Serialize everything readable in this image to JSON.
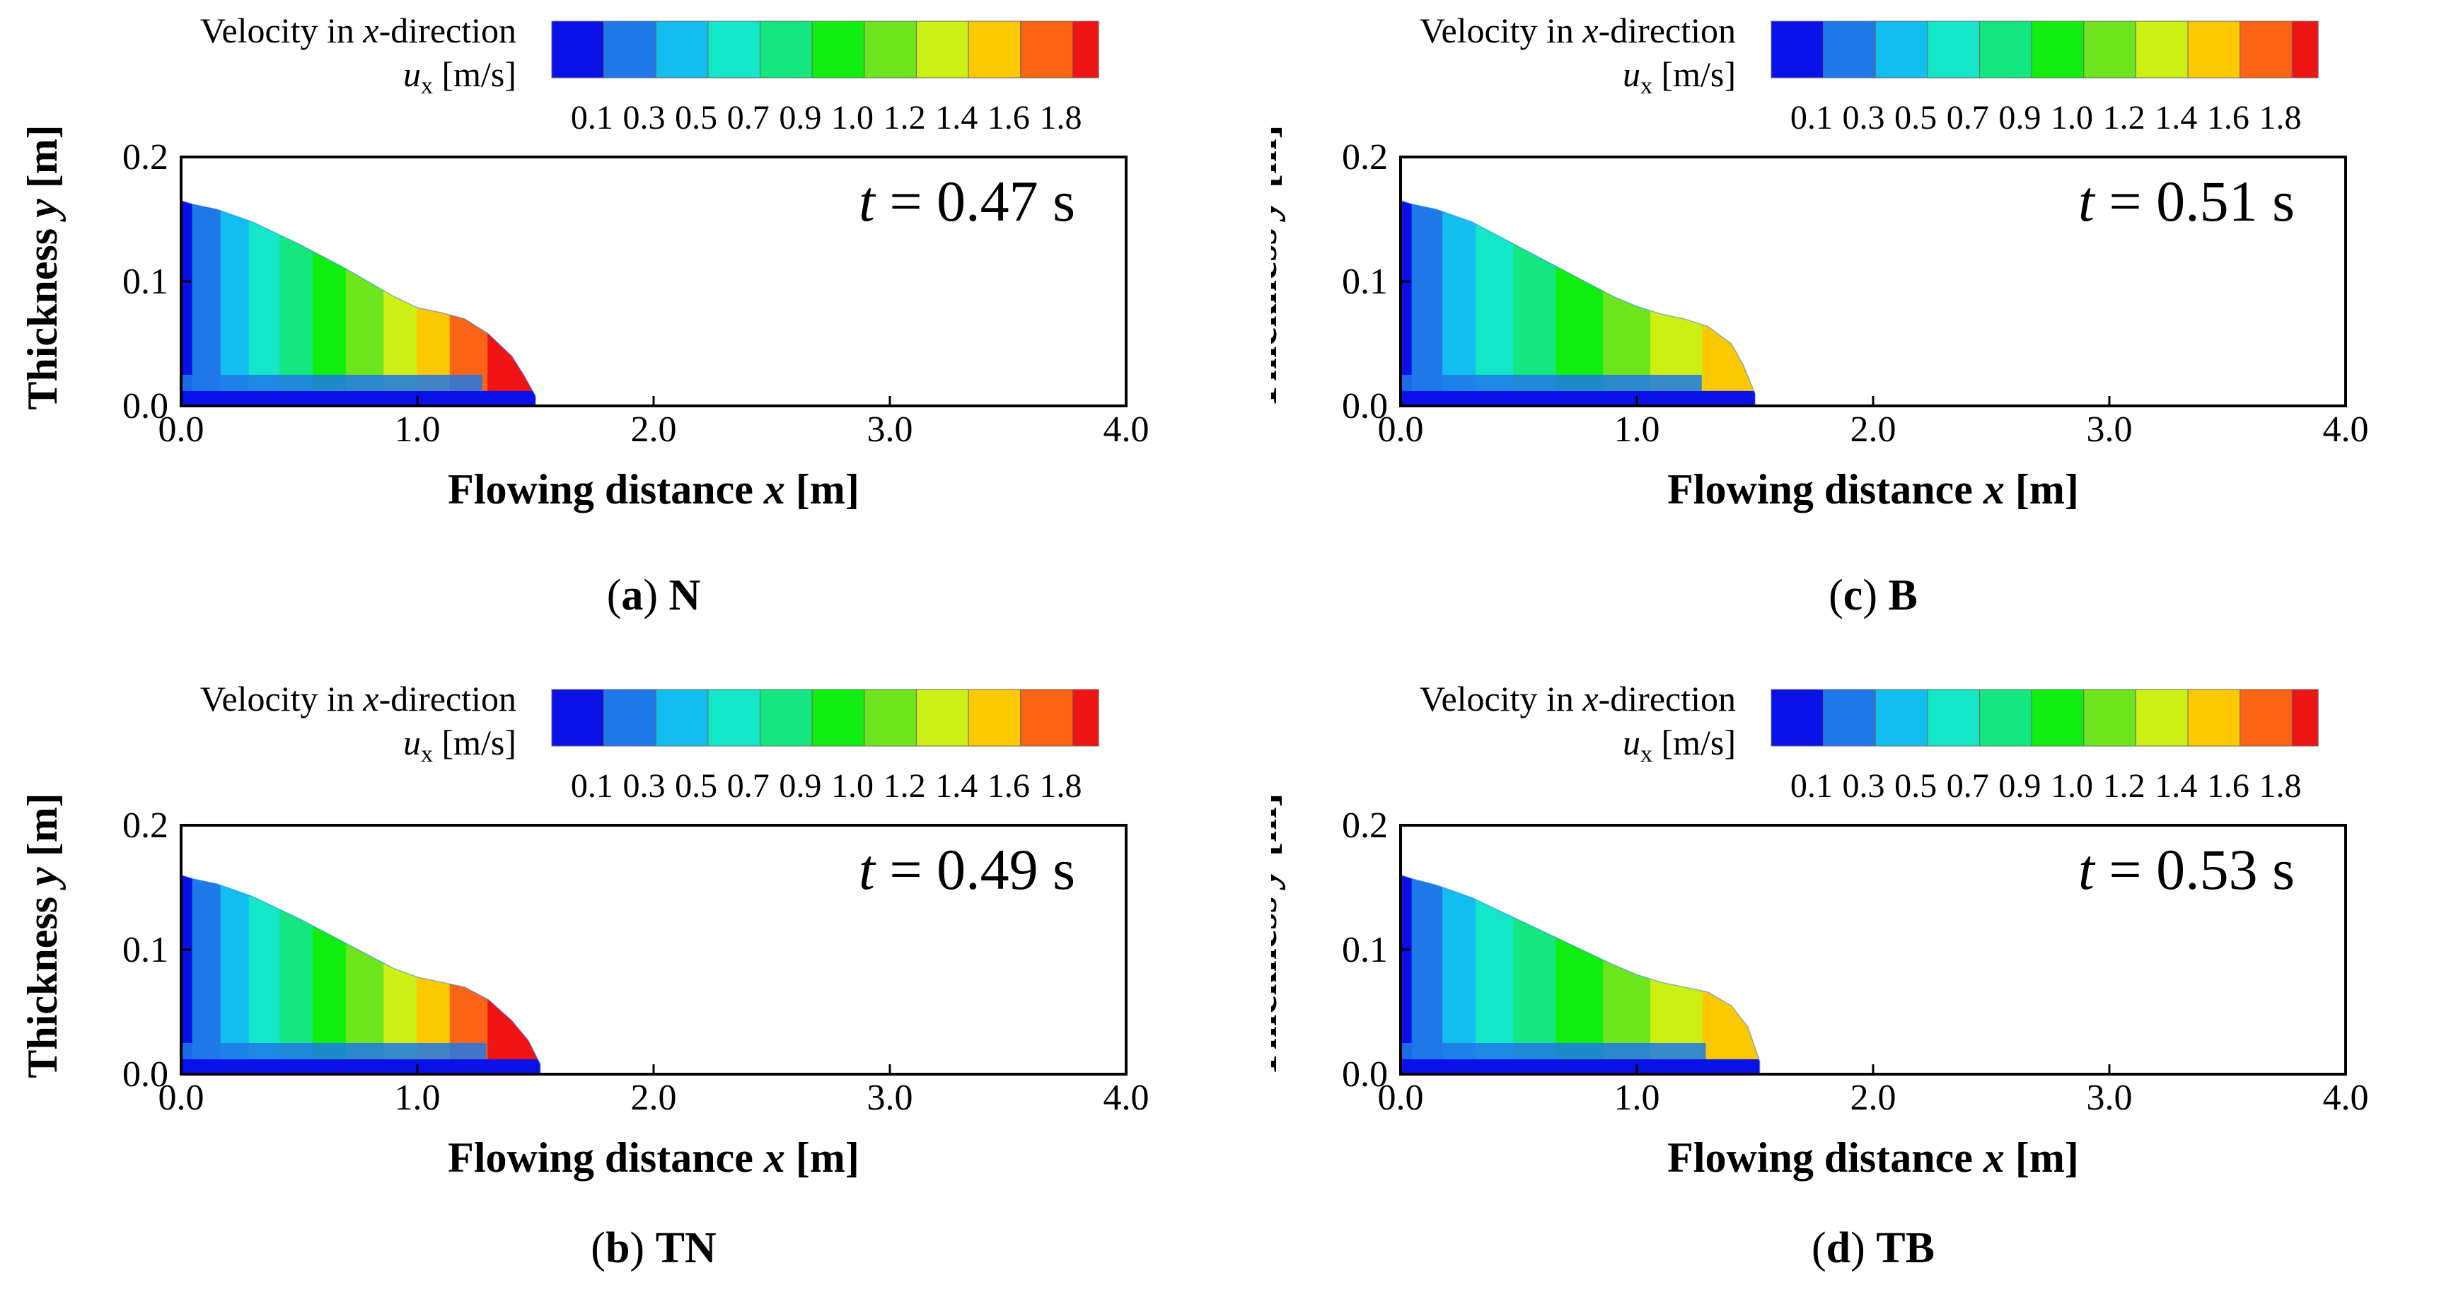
{
  "figure": {
    "colorbar_title": "Velocity in x-direction",
    "colorbar_title_parts": [
      "Velocity in ",
      "x",
      "-direction"
    ],
    "colorbar_unit_symbol": "u",
    "colorbar_unit_subscript": "x",
    "colorbar_unit": "[m/s]",
    "colorbar_ticks": [
      "0.1",
      "0.3",
      "0.5",
      "0.7",
      "0.9",
      "1.0",
      "1.2",
      "1.4",
      "1.6",
      "1.8"
    ],
    "colorbar_colors": [
      "#0a10e8",
      "#1e78e8",
      "#12bef0",
      "#14e6c8",
      "#14e680",
      "#10ee10",
      "#6ee61e",
      "#ccf014",
      "#fcc800",
      "#fa6414",
      "#f01414"
    ],
    "xlabel": "Flowing distance x [m]",
    "xlabel_parts": [
      "Flowing distance ",
      "x",
      " [m]"
    ],
    "ylabel": "Thickness y [m]",
    "ylabel_parts": [
      "Thickness ",
      "y",
      " [m]"
    ],
    "time_symbol": "t",
    "time_equals": "=",
    "time_unit": "s"
  },
  "chart_data": [
    {
      "type": "contour",
      "panel": "a",
      "caption_letter": "(a)",
      "caption_label": "N",
      "time_value": "0.47",
      "time_s": 0.47,
      "title": "",
      "xlabel": "Flowing distance x [m]",
      "ylabel": "Thickness y [m]",
      "xlim": [
        0.0,
        4.0
      ],
      "ylim": [
        0.0,
        0.2
      ],
      "x_ticks": [
        "0.0",
        "1.0",
        "2.0",
        "3.0",
        "4.0"
      ],
      "y_ticks": [
        "0.0",
        "0.1",
        "0.2"
      ],
      "front_position_m": 1.5,
      "max_thickness_m": 0.165,
      "max_velocity_m_s": 1.8,
      "surface_profile": {
        "x": [
          0.0,
          0.05,
          0.15,
          0.3,
          0.5,
          0.7,
          0.9,
          1.0,
          1.1,
          1.2,
          1.3,
          1.4,
          1.45,
          1.5
        ],
        "y": [
          0.165,
          0.162,
          0.158,
          0.148,
          0.13,
          0.11,
          0.088,
          0.079,
          0.075,
          0.07,
          0.058,
          0.04,
          0.025,
          0.008
        ]
      },
      "velocity_bands_x_end": [
        0.05,
        0.17,
        0.29,
        0.42,
        0.56,
        0.7,
        0.86,
        1.0,
        1.14,
        1.3,
        1.5
      ]
    },
    {
      "type": "contour",
      "panel": "b",
      "caption_letter": "(b)",
      "caption_label": "TN",
      "time_value": "0.49",
      "time_s": 0.49,
      "title": "",
      "xlabel": "Flowing distance x [m]",
      "ylabel": "Thickness y [m]",
      "xlim": [
        0.0,
        4.0
      ],
      "ylim": [
        0.0,
        0.2
      ],
      "x_ticks": [
        "0.0",
        "1.0",
        "2.0",
        "3.0",
        "4.0"
      ],
      "y_ticks": [
        "0.0",
        "0.1",
        "0.2"
      ],
      "front_position_m": 1.52,
      "max_thickness_m": 0.16,
      "max_velocity_m_s": 1.8,
      "surface_profile": {
        "x": [
          0.0,
          0.05,
          0.15,
          0.3,
          0.5,
          0.7,
          0.9,
          1.0,
          1.1,
          1.2,
          1.3,
          1.4,
          1.47,
          1.52
        ],
        "y": [
          0.16,
          0.157,
          0.153,
          0.143,
          0.125,
          0.105,
          0.085,
          0.078,
          0.074,
          0.07,
          0.06,
          0.043,
          0.027,
          0.008
        ]
      },
      "velocity_bands_x_end": [
        0.05,
        0.17,
        0.29,
        0.42,
        0.56,
        0.7,
        0.86,
        1.0,
        1.14,
        1.3,
        1.52
      ]
    },
    {
      "type": "contour",
      "panel": "c",
      "caption_letter": "(c)",
      "caption_label": "B",
      "time_value": "0.51",
      "time_s": 0.51,
      "title": "",
      "xlabel": "Flowing distance x [m]",
      "ylabel": "Thickness y [m]",
      "xlim": [
        0.0,
        4.0
      ],
      "ylim": [
        0.0,
        0.2
      ],
      "x_ticks": [
        "0.0",
        "1.0",
        "2.0",
        "3.0",
        "4.0"
      ],
      "y_ticks": [
        "0.0",
        "0.1",
        "0.2"
      ],
      "front_position_m": 1.5,
      "max_thickness_m": 0.165,
      "max_velocity_m_s": 1.5,
      "surface_profile": {
        "x": [
          0.0,
          0.05,
          0.15,
          0.3,
          0.5,
          0.7,
          0.9,
          1.0,
          1.1,
          1.2,
          1.3,
          1.4,
          1.45,
          1.5
        ],
        "y": [
          0.165,
          0.162,
          0.158,
          0.148,
          0.128,
          0.108,
          0.088,
          0.08,
          0.074,
          0.07,
          0.064,
          0.05,
          0.033,
          0.01
        ]
      },
      "velocity_bands_x_end": [
        0.05,
        0.18,
        0.32,
        0.48,
        0.66,
        0.86,
        1.06,
        1.28,
        1.5
      ]
    },
    {
      "type": "contour",
      "panel": "d",
      "caption_letter": "(d)",
      "caption_label": "TB",
      "time_value": "0.53",
      "time_s": 0.53,
      "title": "",
      "xlabel": "Flowing distance x [m]",
      "ylabel": "Thickness y [m]",
      "xlim": [
        0.0,
        4.0
      ],
      "ylim": [
        0.0,
        0.2
      ],
      "x_ticks": [
        "0.0",
        "1.0",
        "2.0",
        "3.0",
        "4.0"
      ],
      "y_ticks": [
        "0.0",
        "0.1",
        "0.2"
      ],
      "front_position_m": 1.52,
      "max_thickness_m": 0.16,
      "max_velocity_m_s": 1.5,
      "surface_profile": {
        "x": [
          0.0,
          0.05,
          0.15,
          0.3,
          0.5,
          0.7,
          0.9,
          1.0,
          1.1,
          1.2,
          1.3,
          1.4,
          1.47,
          1.52
        ],
        "y": [
          0.16,
          0.157,
          0.152,
          0.142,
          0.124,
          0.106,
          0.088,
          0.08,
          0.074,
          0.07,
          0.066,
          0.055,
          0.038,
          0.01
        ]
      },
      "velocity_bands_x_end": [
        0.05,
        0.18,
        0.32,
        0.48,
        0.66,
        0.86,
        1.06,
        1.28,
        1.52
      ]
    }
  ]
}
